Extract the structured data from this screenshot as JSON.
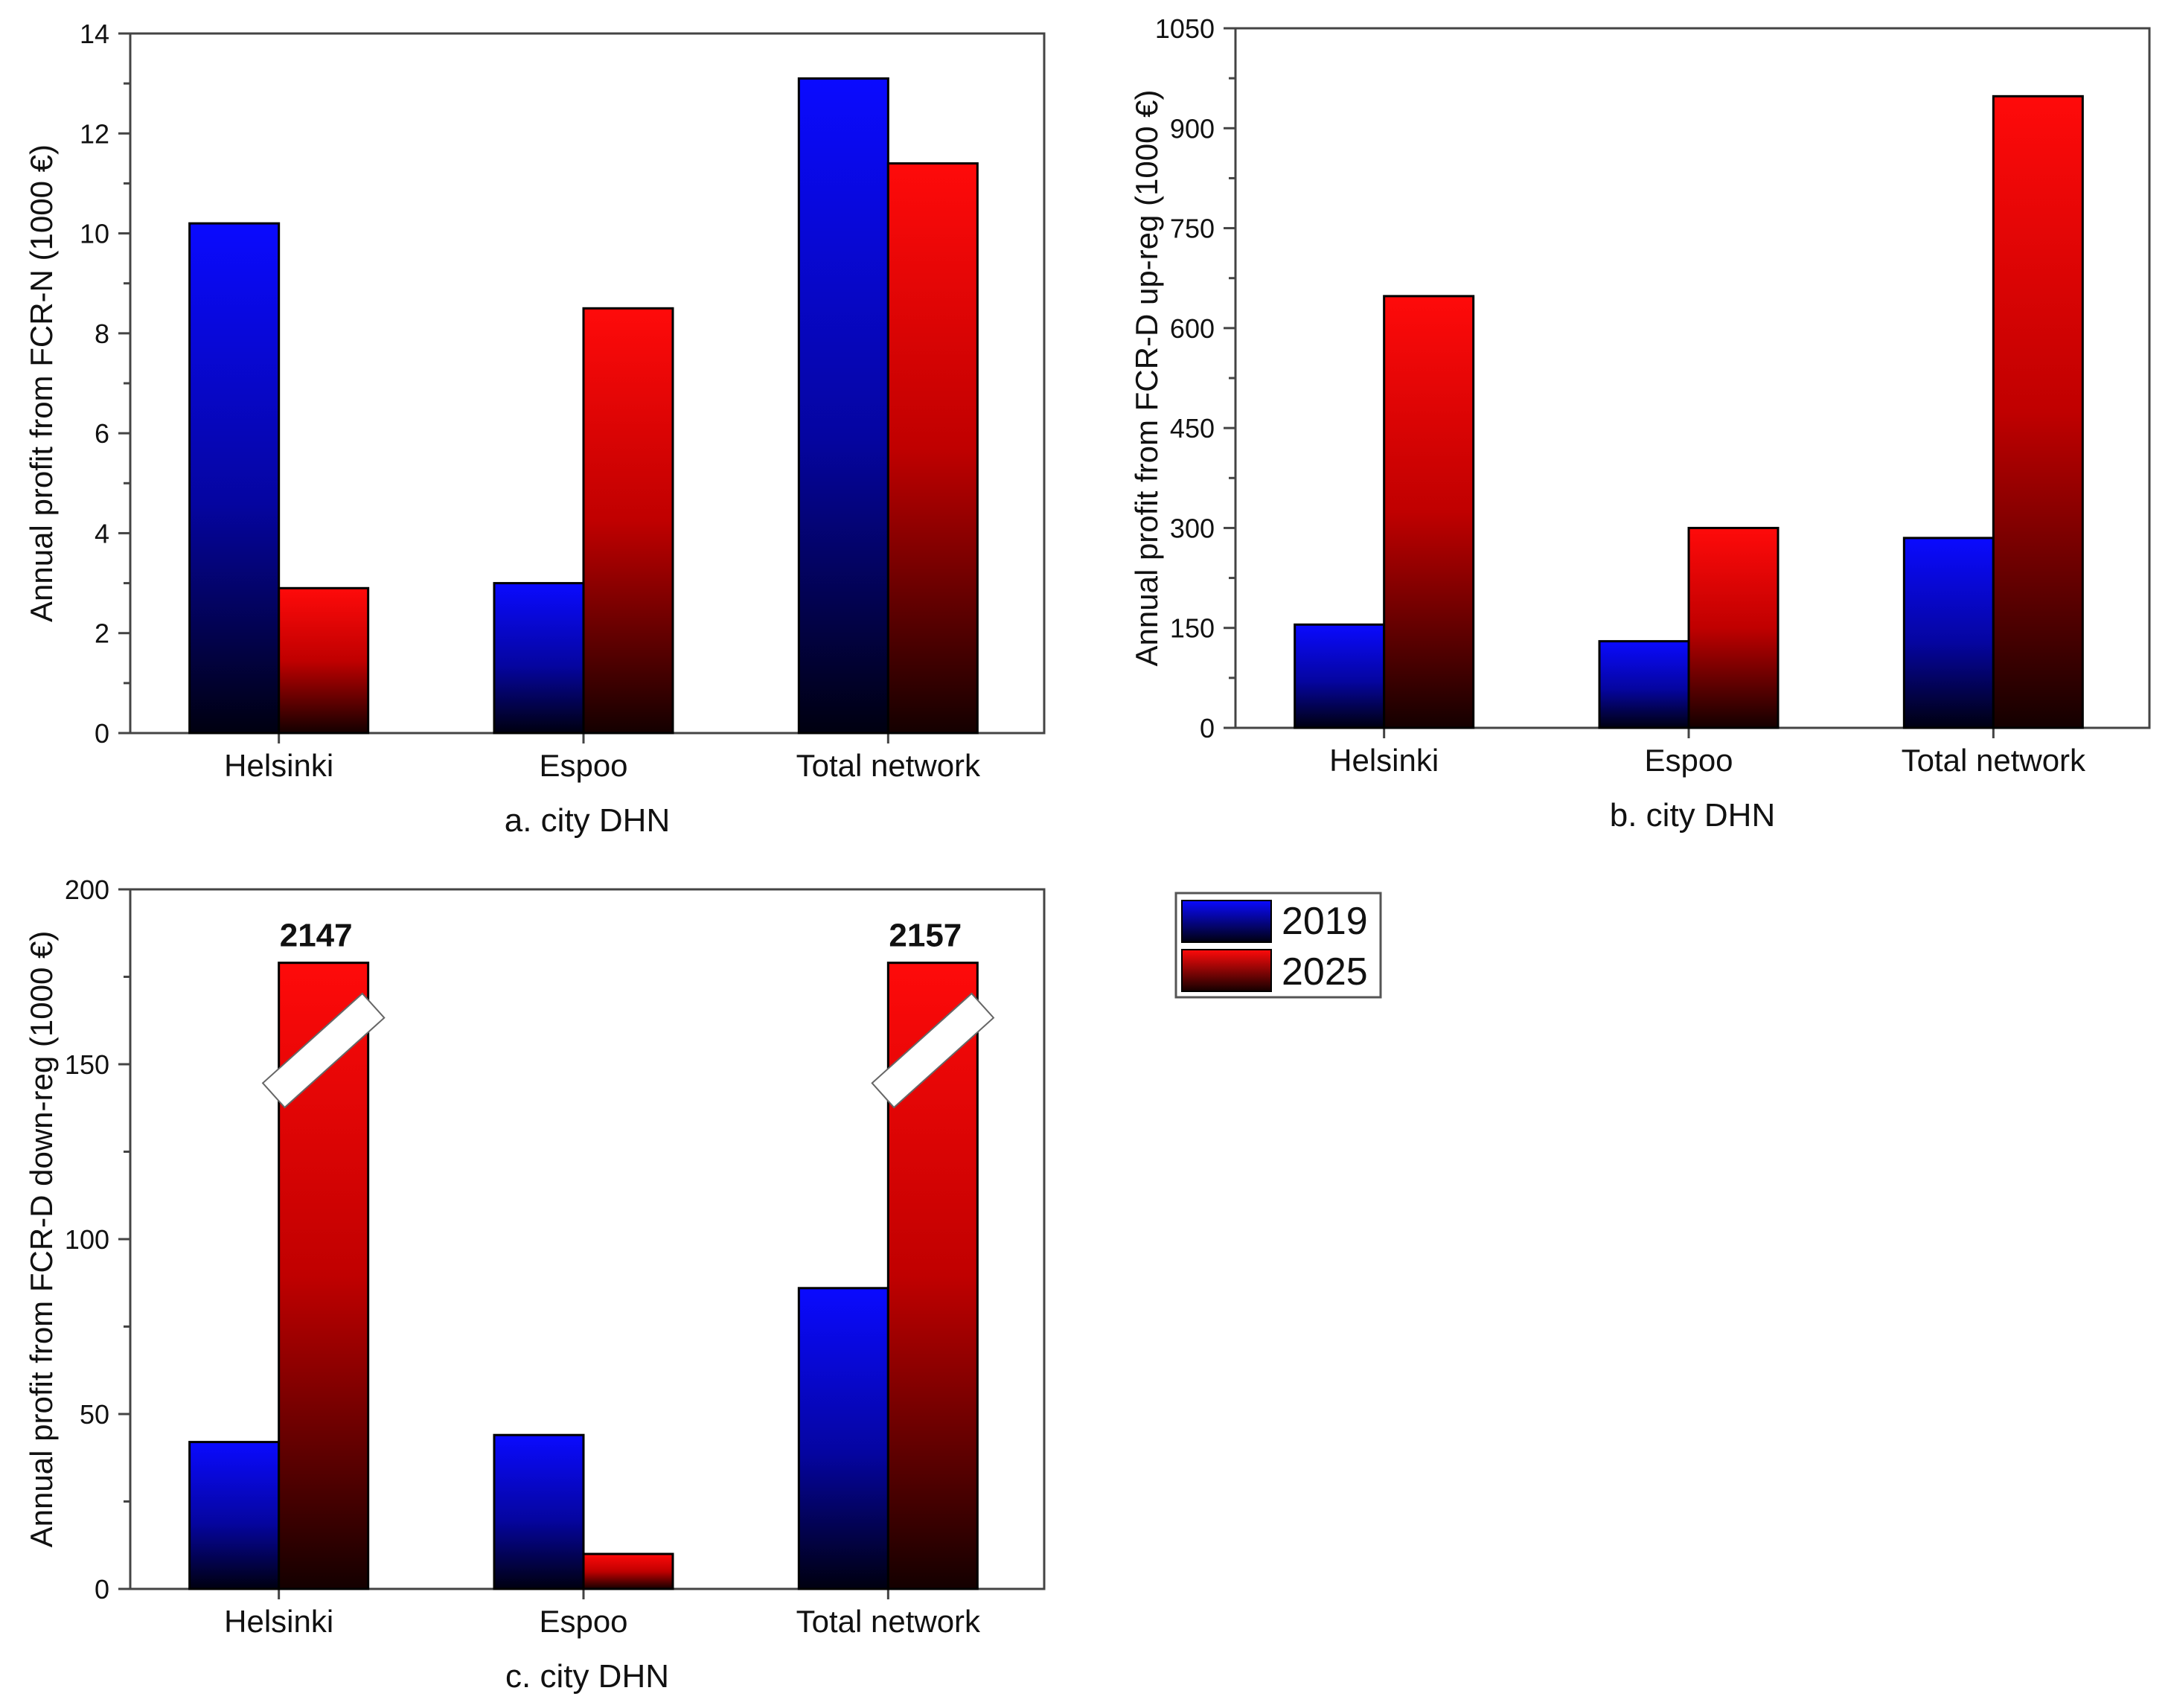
{
  "legend": [
    {
      "label": "2019",
      "color_top": "#0a0aff",
      "color_bottom": "#000010"
    },
    {
      "label": "2025",
      "color_top": "#ff0a0a",
      "color_bottom": "#140000"
    }
  ],
  "chart_data": [
    {
      "type": "bar",
      "title": "",
      "xlabel": "a. city DHN",
      "ylabel": "Annual profit from FCR-N (1000 €)",
      "categories": [
        "Helsinki",
        "Espoo",
        "Total network"
      ],
      "series": [
        {
          "name": "2019",
          "values": [
            10.2,
            3.0,
            13.1
          ]
        },
        {
          "name": "2025",
          "values": [
            2.9,
            8.5,
            11.4
          ]
        }
      ],
      "ylim": [
        0,
        14
      ],
      "yticks": [
        "0",
        "2",
        "4",
        "6",
        "8",
        "10",
        "12",
        "14"
      ],
      "ytick_values": [
        0,
        2,
        4,
        6,
        8,
        10,
        12,
        14
      ],
      "annotations": [],
      "legend": "right",
      "grid": false
    },
    {
      "type": "bar",
      "title": "",
      "xlabel": "b. city DHN",
      "ylabel": "Annual profit from FCR-D up-reg (1000 €)",
      "categories": [
        "Helsinki",
        "Espoo",
        "Total network"
      ],
      "series": [
        {
          "name": "2019",
          "values": [
            155,
            130,
            285
          ]
        },
        {
          "name": "2025",
          "values": [
            648,
            300,
            948
          ]
        }
      ],
      "ylim": [
        0,
        1050
      ],
      "yticks": [
        "0",
        "150",
        "300",
        "450",
        "600",
        "750",
        "900",
        "1050"
      ],
      "ytick_values": [
        0,
        150,
        300,
        450,
        600,
        750,
        900,
        1050
      ],
      "annotations": [],
      "legend": "right",
      "grid": false
    },
    {
      "type": "bar",
      "title": "",
      "xlabel": "c. city DHN",
      "ylabel": "Annual profit from FCR-D down-reg (1000 €)",
      "categories": [
        "Helsinki",
        "Espoo",
        "Total network"
      ],
      "series": [
        {
          "name": "2019",
          "values": [
            42,
            44,
            86
          ]
        },
        {
          "name": "2025",
          "values": [
            2147,
            10,
            2157
          ]
        }
      ],
      "ylim": [
        0,
        200
      ],
      "yticks": [
        "0",
        "50",
        "100",
        "150",
        "200"
      ],
      "ytick_values": [
        0,
        50,
        100,
        150,
        200
      ],
      "axis_break": {
        "clip_value": 179
      },
      "annotations": [
        {
          "category": "Helsinki",
          "series": "2025",
          "text": "2147"
        },
        {
          "category": "Total network",
          "series": "2025",
          "text": "2157"
        }
      ],
      "legend": "right",
      "grid": false
    }
  ]
}
